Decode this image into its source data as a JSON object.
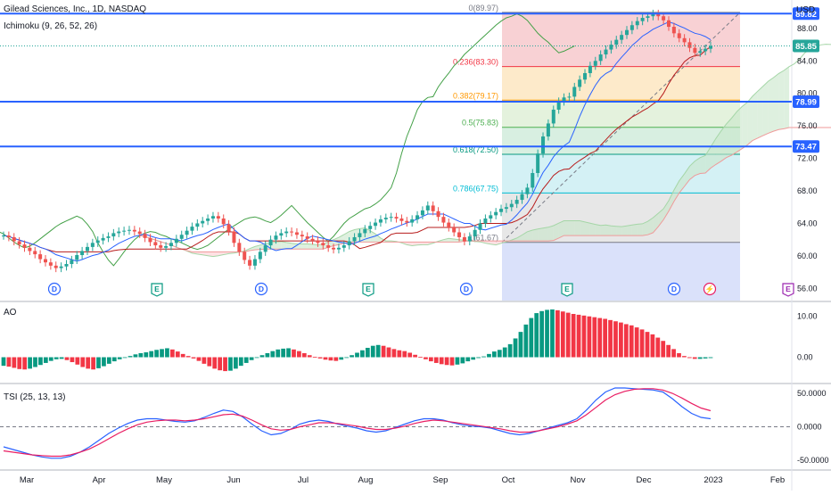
{
  "header": {
    "symbol": "Gilead Sciences, Inc., 1D, NASDAQ",
    "indicator": "Ichimoku (9, 26, 52, 26)",
    "currency": "USD"
  },
  "chart_data": [
    {
      "type": "candlestick",
      "pane": "price",
      "y_axis_ticks": [
        "88.00",
        "84.00",
        "80.00",
        "76.00",
        "72.00",
        "68.00",
        "64.00",
        "60.00",
        "56.00"
      ],
      "ylim": [
        54.5,
        91.5
      ],
      "price_tags": [
        {
          "value": "89.82",
          "color": "#2962ff"
        },
        {
          "value": "85.85",
          "color": "#26a69a"
        },
        {
          "value": "78.99",
          "color": "#2962ff"
        },
        {
          "value": "73.47",
          "color": "#2962ff"
        }
      ],
      "horizontal_lines": [
        89.82,
        78.99,
        73.47
      ],
      "last_price": 85.85,
      "fibonacci": {
        "levels": [
          {
            "label": "0(89.97)",
            "value": 89.97,
            "color": "#787b86"
          },
          {
            "label": "0.236(83.30)",
            "value": 83.3,
            "color": "#f23645"
          },
          {
            "label": "0.382(79.17)",
            "value": 79.17,
            "color": "#ff9800"
          },
          {
            "label": "0.5(75.83)",
            "value": 75.83,
            "color": "#4caf50"
          },
          {
            "label": "0.618(72.50)",
            "value": 72.5,
            "color": "#089981"
          },
          {
            "label": "0.786(67.75)",
            "value": 67.75,
            "color": "#00bcd4"
          },
          {
            "label": "1(61.67)",
            "value": 61.67,
            "color": "#787b86"
          }
        ],
        "band_colors": [
          "#f7c9cc",
          "#fde6c1",
          "#dff0d7",
          "#d1ecdc",
          "#cdeff3",
          "#e3e3e3",
          "#d4dcf9"
        ]
      },
      "event_markers": [
        {
          "label": "D",
          "kind": "dividend",
          "color": "#2962ff"
        },
        {
          "label": "E",
          "kind": "earnings",
          "color": "#089981"
        },
        {
          "label": "D",
          "kind": "dividend",
          "color": "#2962ff"
        },
        {
          "label": "E",
          "kind": "earnings",
          "color": "#089981"
        },
        {
          "label": "D",
          "kind": "dividend",
          "color": "#2962ff"
        },
        {
          "label": "E",
          "kind": "earnings",
          "color": "#089981"
        },
        {
          "label": "D",
          "kind": "dividend",
          "color": "#2962ff"
        },
        {
          "label": "⚡",
          "kind": "split",
          "color": "#e91e63"
        },
        {
          "label": "E",
          "kind": "earnings",
          "color": "#9c27b0"
        }
      ],
      "series": [
        {
          "name": "Close",
          "values": [
            62.5,
            62.3,
            61.8,
            61.4,
            61.0,
            60.6,
            60.2,
            59.6,
            59.2,
            58.8,
            58.5,
            58.7,
            59.0,
            59.5,
            60.1,
            60.6,
            61.1,
            61.6,
            61.9,
            62.2,
            62.4,
            62.8,
            63.0,
            63.1,
            63.2,
            63.0,
            62.7,
            62.2,
            61.7,
            61.3,
            61.0,
            61.2,
            61.6,
            62.1,
            62.6,
            63.1,
            63.6,
            64.0,
            64.3,
            64.6,
            64.9,
            64.6,
            63.9,
            63.0,
            61.6,
            60.5,
            59.5,
            58.8,
            59.6,
            60.5,
            61.3,
            62.0,
            62.5,
            62.8,
            63.0,
            62.9,
            62.6,
            62.4,
            62.1,
            61.9,
            61.6,
            61.3,
            61.0,
            60.8,
            61.0,
            61.3,
            61.8,
            62.3,
            62.8,
            63.3,
            63.7,
            64.1,
            64.5,
            64.7,
            64.8,
            64.6,
            64.3,
            64.1,
            64.5,
            65.0,
            65.6,
            66.2,
            65.5,
            64.8,
            64.1,
            63.5,
            62.9,
            62.3,
            61.8,
            62.4,
            63.2,
            64.0,
            64.6,
            65.0,
            65.4,
            65.8,
            66.0,
            66.4,
            66.9,
            67.6,
            68.4,
            70.2,
            72.6,
            74.7,
            76.3,
            78.0,
            79.0,
            79.5,
            79.6,
            80.8,
            81.7,
            82.5,
            83.4,
            84.0,
            84.8,
            85.4,
            86.0,
            86.6,
            87.2,
            87.8,
            88.4,
            88.9,
            89.3,
            89.5,
            89.8,
            89.5,
            89.0,
            88.2,
            87.4,
            86.8,
            86.3,
            85.6,
            85.0,
            85.2,
            85.5,
            85.85
          ],
          "color": "#26a69a"
        },
        {
          "name": "Conversion Line",
          "color": "#2962ff"
        },
        {
          "name": "Base Line",
          "color": "#b71c1c"
        },
        {
          "name": "Lagging Span",
          "color": "#43a047"
        },
        {
          "name": "Leading Span A",
          "color": "#a5d6a7"
        },
        {
          "name": "Leading Span B",
          "color": "#ef9a9a"
        }
      ]
    },
    {
      "type": "bar",
      "pane": "AO",
      "title": "AO",
      "y_axis_ticks": [
        "10.00",
        "0.00"
      ],
      "ylim": [
        -6,
        13
      ],
      "values": [
        -2.1,
        -2.3,
        -2.6,
        -2.9,
        -3.0,
        -2.8,
        -2.4,
        -1.9,
        -1.4,
        -0.9,
        -0.5,
        -0.4,
        -0.7,
        -1.2,
        -1.8,
        -2.4,
        -2.8,
        -3.0,
        -2.7,
        -2.2,
        -1.6,
        -1.0,
        -0.5,
        -0.1,
        0.3,
        0.7,
        1.0,
        1.2,
        1.5,
        1.8,
        2.0,
        2.2,
        1.9,
        1.4,
        0.8,
        0.3,
        -0.3,
        -0.9,
        -1.6,
        -2.2,
        -2.8,
        -3.2,
        -3.4,
        -3.3,
        -2.8,
        -2.1,
        -1.4,
        -0.7,
        -0.1,
        0.5,
        1.0,
        1.5,
        1.9,
        2.1,
        2.2,
        1.9,
        1.5,
        1.0,
        0.5,
        0.1,
        -0.3,
        -0.6,
        -0.8,
        -0.9,
        -0.6,
        -0.1,
        0.5,
        1.1,
        1.7,
        2.3,
        2.8,
        3.0,
        2.8,
        2.4,
        2.0,
        1.7,
        1.5,
        1.1,
        0.6,
        0.1,
        -0.5,
        -1.0,
        -1.4,
        -1.7,
        -1.9,
        -2.0,
        -1.8,
        -1.5,
        -1.0,
        -0.6,
        -0.2,
        0.2,
        0.8,
        1.4,
        1.8,
        2.4,
        3.2,
        4.6,
        6.2,
        8.0,
        9.6,
        10.8,
        11.3,
        11.6,
        11.7,
        11.5,
        11.2,
        10.9,
        10.6,
        10.4,
        10.2,
        10.0,
        9.8,
        9.6,
        9.4,
        9.1,
        8.8,
        8.5,
        8.1,
        7.8,
        7.3,
        6.8,
        6.2,
        5.6,
        4.8,
        4.0,
        3.0,
        2.0,
        1.0,
        0.3,
        -0.2,
        -0.4,
        -0.4,
        -0.3,
        -0.2
      ]
    },
    {
      "type": "line",
      "pane": "TSI",
      "title": "TSI (25, 13, 13)",
      "y_axis_ticks": [
        "50.0000",
        "0.0000",
        "-50.0000"
      ],
      "ylim": [
        -62,
        62
      ],
      "zero_line": true,
      "series": [
        {
          "name": "TSI",
          "color": "#2962ff",
          "values": [
            -30,
            -34,
            -38,
            -42,
            -45,
            -47,
            -47,
            -44,
            -38,
            -30,
            -20,
            -10,
            -2,
            5,
            10,
            12,
            12,
            10,
            8,
            7,
            9,
            14,
            20,
            25,
            23,
            15,
            4,
            -6,
            -12,
            -10,
            -4,
            4,
            8,
            10,
            8,
            4,
            1,
            -2,
            -6,
            -8,
            -6,
            -1,
            4,
            9,
            12,
            12,
            10,
            6,
            3,
            1,
            0,
            -2,
            -6,
            -10,
            -12,
            -10,
            -6,
            -2,
            2,
            6,
            12,
            25,
            40,
            52,
            58,
            58,
            57,
            56,
            55,
            52,
            42,
            30,
            20,
            14,
            12
          ]
        },
        {
          "name": "Signal",
          "color": "#e91e63",
          "values": [
            -36,
            -38,
            -40,
            -42,
            -43,
            -44,
            -44,
            -42,
            -38,
            -33,
            -26,
            -18,
            -10,
            -3,
            3,
            7,
            9,
            10,
            10,
            9,
            10,
            12,
            15,
            18,
            19,
            16,
            10,
            3,
            -3,
            -5,
            -4,
            0,
            3,
            6,
            6,
            5,
            3,
            1,
            -2,
            -4,
            -4,
            -2,
            1,
            5,
            8,
            10,
            9,
            7,
            5,
            3,
            1,
            -1,
            -3,
            -6,
            -8,
            -8,
            -6,
            -3,
            0,
            4,
            9,
            18,
            29,
            40,
            48,
            53,
            56,
            57,
            57,
            55,
            50,
            43,
            35,
            28,
            24
          ]
        }
      ]
    }
  ],
  "x_axis": {
    "labels": [
      "Mar",
      "Apr",
      "May",
      "Jun",
      "Jul",
      "Aug",
      "Sep",
      "Oct",
      "Nov",
      "Dec",
      "2023",
      "Feb"
    ]
  }
}
